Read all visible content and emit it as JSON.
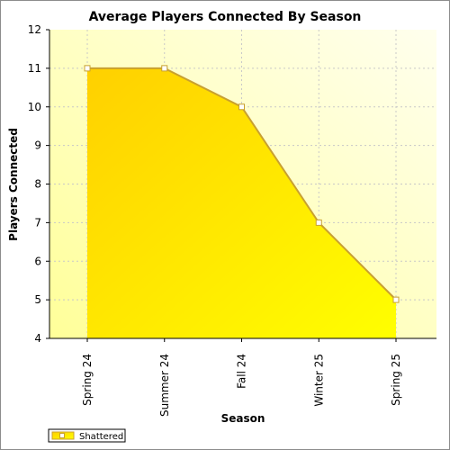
{
  "chart_data": {
    "type": "area",
    "title": "Average Players Connected By Season",
    "xlabel": "Season",
    "ylabel": "Players Connected",
    "categories": [
      "Spring 24",
      "Summer 24",
      "Fall 24",
      "Winter 25",
      "Spring 25"
    ],
    "series": [
      {
        "name": "Shattered",
        "values": [
          11,
          11,
          10,
          7,
          5
        ]
      }
    ],
    "ylim": [
      4,
      12
    ],
    "yticks": [
      4,
      5,
      6,
      7,
      8,
      9,
      10,
      11,
      12
    ],
    "grid": true,
    "legend_position": "bottom-left",
    "colors": {
      "fill_light": "#ffff00",
      "fill_dark": "#ffd000",
      "line": "#c8a030",
      "marker_fill": "#ffffff",
      "plot_bg_light": "#ffffee",
      "plot_bg_dark": "#ffff99"
    }
  }
}
